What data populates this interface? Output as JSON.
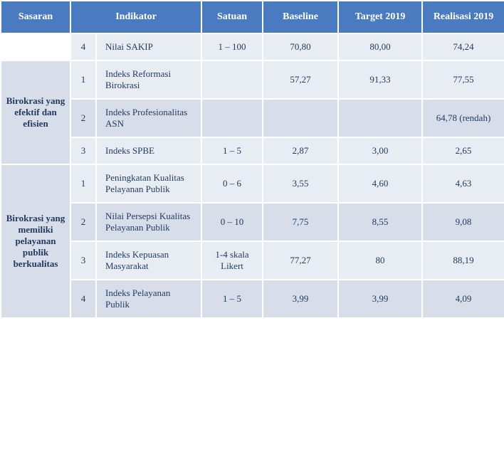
{
  "header": {
    "sasaran": "Sasaran",
    "indikator": "Indikator",
    "satuan": "Satuan",
    "baseline": "Baseline",
    "target": "Target 2019",
    "realisasi": "Realisasi 2019"
  },
  "colors": {
    "header_bg": "#4a7bc0",
    "header_fg": "#ffffff",
    "row_light": "#e8ecf3",
    "row_dark": "#d7dde9",
    "sasaran_empty_bg": "#ffffff",
    "text": "#1f3a5f",
    "border": "#ffffff"
  },
  "groups": [
    {
      "sasaran": "",
      "sasaran_empty": true,
      "rows": [
        {
          "n": "4",
          "indikator": "Nilai SAKIP",
          "satuan": "1 – 100",
          "baseline": "70,80",
          "target": "80,00",
          "realisasi": "74,24",
          "shade": "light"
        }
      ]
    },
    {
      "sasaran": "Birokrasi yang efektif dan efisien",
      "rows": [
        {
          "n": "1",
          "indikator": "Indeks Reformasi Birokrasi",
          "satuan": "",
          "baseline": "57,27",
          "target": "91,33",
          "realisasi": "77,55",
          "shade": "light"
        },
        {
          "n": "2",
          "indikator": "Indeks Profesionalitas ASN",
          "satuan": "",
          "baseline": "",
          "target": "",
          "realisasi": "64,78 (rendah)",
          "shade": "dark"
        },
        {
          "n": "3",
          "indikator": "Indeks SPBE",
          "satuan": "1 – 5",
          "baseline": "2,87",
          "target": "3,00",
          "realisasi": "2,65",
          "shade": "light"
        }
      ]
    },
    {
      "sasaran": "Birokrasi yang memiliki pelayanan publik berkualitas",
      "rows": [
        {
          "n": "1",
          "indikator": "Peningkatan Kualitas Pelayanan Publik",
          "satuan": "0 – 6",
          "baseline": "3,55",
          "target": "4,60",
          "realisasi": "4,63",
          "shade": "light"
        },
        {
          "n": "2",
          "indikator": "Nilai Persepsi Kualitas Pelayanan Publik",
          "satuan": "0 – 10",
          "baseline": "7,75",
          "target": "8,55",
          "realisasi": "9,08",
          "shade": "dark"
        },
        {
          "n": "3",
          "indikator": "Indeks Kepuasan Masyarakat",
          "satuan": "1-4 skala Likert",
          "baseline": "77,27",
          "target": "80",
          "realisasi": "88,19",
          "shade": "light"
        },
        {
          "n": "4",
          "indikator": "Indeks Pelayanan Publik",
          "satuan": "1 – 5",
          "baseline": "3,99",
          "target": "3,99",
          "realisasi": "4,09",
          "shade": "dark"
        }
      ]
    }
  ]
}
